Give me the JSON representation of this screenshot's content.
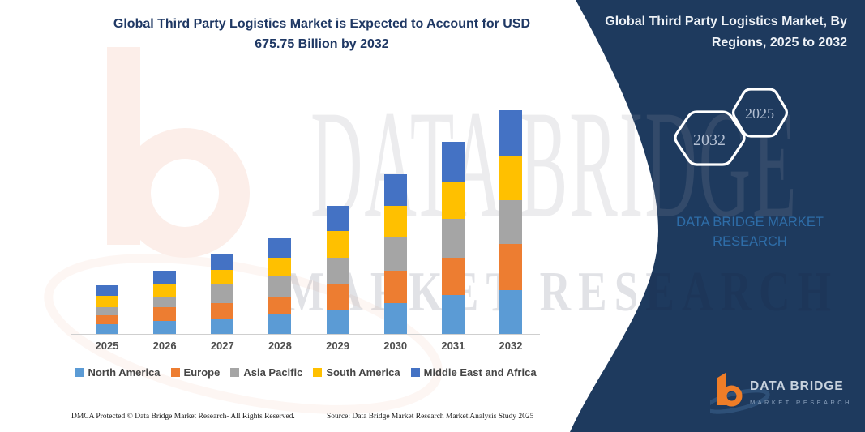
{
  "page_title": {
    "text": "Global Third Party Logistics Market is Expected to Account for USD 675.75 Billion by 2032"
  },
  "right_panel": {
    "heading": "Global Third Party Logistics Market, By Regions, 2025 to 2032",
    "hexagon_back_year": "2032",
    "hexagon_front_year": "2025",
    "brand_caption": "DATA BRIDGE MARKET RESEARCH",
    "background_color": "#1e3a5e"
  },
  "watermark": {
    "line1": "DATA BRIDGE",
    "line2": "MARKET RESEARCH"
  },
  "logo": {
    "title": "DATA BRIDGE",
    "subtitle": "MARKET RESEARCH"
  },
  "footer": {
    "dmca": "DMCA Protected © Data Bridge Market Research-  All Rights Reserved.",
    "source": "Source: Data Bridge Market Research  Market Analysis Study 2025"
  },
  "chart_data": {
    "type": "bar",
    "stacked": true,
    "title": "Global Third Party Logistics Market is Expected to Account for USD 675.75 Billion by 2032",
    "units": "USD Billion",
    "categories": [
      "2025",
      "2026",
      "2027",
      "2028",
      "2029",
      "2030",
      "2031",
      "2032"
    ],
    "series": [
      {
        "name": "North America",
        "color": "#5b9bd5",
        "values": [
          29.4,
          39.2,
          43.3,
          58.0,
          74.4,
          92.3,
          116.8,
          133.2
        ]
      },
      {
        "name": "Europe",
        "color": "#ed7d31",
        "values": [
          27.7,
          42.6,
          49.0,
          52.1,
          76.6,
          99.6,
          114.3,
          138.6
        ]
      },
      {
        "name": "Asia Pacific",
        "color": "#a5a5a5",
        "values": [
          24.5,
          30.8,
          57.0,
          63.7,
          78.3,
          102.8,
          115.8,
          132.2
        ]
      },
      {
        "name": "South America",
        "color": "#ffc000",
        "values": [
          32.6,
          39.2,
          45.0,
          55.6,
          81.5,
          93.0,
          114.3,
          134.6
        ]
      },
      {
        "name": "Middle East and Africa",
        "color": "#4472c4",
        "values": [
          32.8,
          40.1,
          44.8,
          60.5,
          75.2,
          94.5,
          118.2,
          137.15
        ]
      }
    ],
    "ylim": [
      0,
      700
    ],
    "grid": false,
    "legend_position": "bottom"
  }
}
